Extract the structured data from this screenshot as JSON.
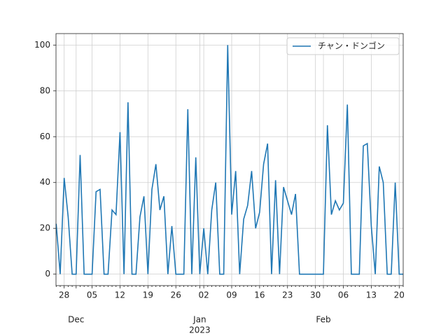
{
  "chart_data": {
    "type": "line",
    "categories": [
      null,
      null,
      "28",
      null,
      null,
      null,
      null,
      null,
      null,
      "05",
      null,
      null,
      null,
      null,
      null,
      null,
      "12",
      null,
      null,
      null,
      null,
      null,
      null,
      "19",
      null,
      null,
      null,
      null,
      null,
      null,
      "26",
      null,
      null,
      null,
      null,
      null,
      null,
      "02",
      null,
      null,
      null,
      null,
      null,
      null,
      "09",
      null,
      null,
      null,
      null,
      null,
      null,
      "16",
      null,
      null,
      null,
      null,
      null,
      null,
      "23",
      null,
      null,
      null,
      null,
      null,
      null,
      "30",
      null,
      null,
      null,
      null,
      null,
      null,
      "06",
      null,
      null,
      null,
      null,
      null,
      null,
      "13",
      null,
      null,
      null,
      null,
      null,
      null,
      "20",
      null
    ],
    "month_labels": [
      null,
      null,
      null,
      null,
      null,
      "Dec",
      null,
      null,
      null,
      null,
      null,
      null,
      null,
      null,
      null,
      null,
      null,
      null,
      null,
      null,
      null,
      null,
      null,
      null,
      null,
      null,
      null,
      null,
      null,
      null,
      null,
      null,
      null,
      null,
      null,
      null,
      "Jan",
      null,
      null,
      null,
      null,
      null,
      null,
      null,
      null,
      null,
      null,
      null,
      null,
      null,
      null,
      null,
      null,
      null,
      null,
      null,
      null,
      null,
      null,
      null,
      null,
      null,
      null,
      null,
      null,
      null,
      null,
      "Feb",
      null,
      null,
      null,
      null,
      null,
      null,
      null,
      null,
      null,
      null,
      null,
      null,
      null,
      null,
      null,
      null,
      null,
      null,
      null,
      null
    ],
    "year_labels": [
      null,
      null,
      null,
      null,
      null,
      null,
      null,
      null,
      null,
      null,
      null,
      null,
      null,
      null,
      null,
      null,
      null,
      null,
      null,
      null,
      null,
      null,
      null,
      null,
      null,
      null,
      null,
      null,
      null,
      null,
      null,
      null,
      null,
      null,
      null,
      null,
      "2023",
      null,
      null,
      null,
      null,
      null,
      null,
      null,
      null,
      null,
      null,
      null,
      null,
      null,
      null,
      null,
      null,
      null,
      null,
      null,
      null,
      null,
      null,
      null,
      null,
      null,
      null,
      null,
      null,
      null,
      null,
      null,
      null,
      null,
      null,
      null,
      null,
      null,
      null,
      null,
      null,
      null,
      null,
      null,
      null,
      null,
      null,
      null,
      null,
      null,
      null,
      null
    ],
    "series": [
      {
        "name": "チャン・ドンゴン",
        "color": "#1f77b4",
        "values": [
          22,
          0,
          42,
          25,
          0,
          0,
          52,
          0,
          0,
          0,
          36,
          37,
          0,
          0,
          28,
          26,
          62,
          0,
          75,
          0,
          0,
          25,
          34,
          0,
          37,
          48,
          28,
          34,
          0,
          21,
          0,
          0,
          0,
          72,
          0,
          51,
          0,
          20,
          0,
          28,
          40,
          0,
          0,
          100,
          26,
          45,
          0,
          24,
          30,
          45,
          20,
          27,
          48,
          57,
          0,
          41,
          0,
          38,
          32,
          26,
          35,
          0,
          0,
          0,
          0,
          0,
          0,
          0,
          65,
          26,
          32,
          28,
          31,
          74,
          0,
          0,
          0,
          56,
          57,
          21,
          0,
          47,
          40,
          0,
          0,
          40,
          0,
          0
        ]
      }
    ],
    "ylim": [
      -5,
      105
    ],
    "yticks": [
      0,
      20,
      40,
      60,
      80,
      100
    ],
    "grid": true,
    "legend": "upper right"
  }
}
